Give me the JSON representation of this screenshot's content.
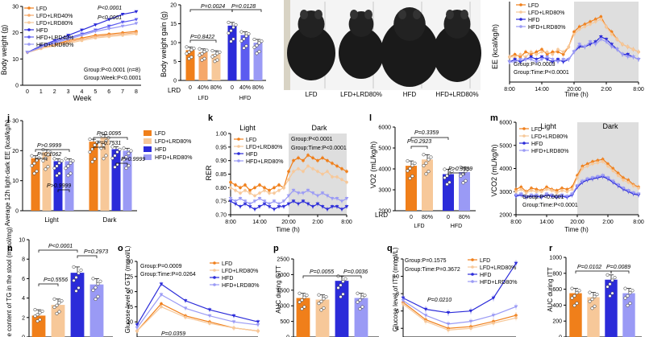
{
  "colors": {
    "LFD": "#f07f1a",
    "LFD+LRD40%": "#f5a86a",
    "LFD+LRD80%": "#f7c899",
    "HFD": "#2b2bd9",
    "HFD+LRD40%": "#5c5cf0",
    "HFD+LRD80%": "#9a9af5",
    "dark_band": "#dedede"
  },
  "photo": {
    "labels": [
      "LFD",
      "LFD+LRD80%",
      "HFD",
      "HFD+LRD80%"
    ]
  },
  "chart_data": [
    {
      "id": "body_weight",
      "type": "line",
      "ylabel": "Body weight (g)",
      "xlabel": "Week",
      "x": [
        0,
        1,
        2,
        3,
        4,
        5,
        6,
        7,
        8
      ],
      "ylim": [
        0,
        30
      ],
      "yticks": [
        0,
        10,
        20,
        30
      ],
      "series": [
        {
          "name": "LFD",
          "values": [
            12.5,
            14,
            15.5,
            17,
            18,
            19,
            19.5,
            20,
            20.5
          ]
        },
        {
          "name": "LFD+LRD40%",
          "values": [
            12.5,
            14,
            15.5,
            16.5,
            17.5,
            18.5,
            19,
            19.5,
            20
          ]
        },
        {
          "name": "LFD+LRD80%",
          "values": [
            12.5,
            14,
            15,
            16,
            17,
            18,
            18.5,
            19,
            19.5
          ]
        },
        {
          "name": "HFD",
          "values": [
            12.5,
            15,
            17,
            19,
            21,
            23,
            25,
            27,
            28
          ]
        },
        {
          "name": "HFD+LRD40%",
          "values": [
            12.5,
            14.5,
            16.5,
            18,
            19.5,
            21,
            22.5,
            24,
            25
          ]
        },
        {
          "name": "HFD+LRD80%",
          "values": [
            12.5,
            14.5,
            16,
            17.5,
            19,
            20.5,
            21.5,
            22.5,
            23.5
          ]
        }
      ],
      "annotations": [
        "P<0.0001",
        "P<0.0001",
        "Group:P<0.0001 (n=8)",
        "Group:Week:P<0.0001"
      ]
    },
    {
      "id": "bw_gain",
      "type": "bar",
      "ylabel": "Body weight gain (g)",
      "ylim": [
        0,
        20
      ],
      "yticks": [
        0,
        5,
        10,
        15,
        20
      ],
      "categories": [
        "0",
        "40%",
        "80%",
        "0",
        "40%",
        "80%"
      ],
      "group_labels": [
        "LFD",
        "HFD"
      ],
      "axis_title": "LRD",
      "values": [
        8,
        7.5,
        7,
        14.5,
        12,
        10
      ],
      "annotations": [
        "P=0.0024",
        "P=0.0128",
        "P=0.8422"
      ]
    },
    {
      "id": "ee_time",
      "type": "line",
      "panel_label": "",
      "ylabel": "EE (kcal/kg/h)",
      "xlabel": "Time (h)",
      "xticks": [
        "8:00",
        "14:00",
        "20:00",
        "2:00",
        "8:00"
      ],
      "series": [
        {
          "name": "LFD",
          "values": [
            17,
            17.5,
            17,
            18,
            17.5,
            18,
            18.5,
            17.5,
            18,
            18,
            17.5,
            19,
            22,
            23,
            23.5,
            24,
            24.5,
            25,
            23,
            22,
            20.5,
            19.5,
            19,
            18.5,
            18
          ]
        },
        {
          "name": "LFD+LRD80%",
          "values": [
            17,
            17,
            17.5,
            17,
            18,
            17.5,
            18,
            18,
            17.5,
            18.5,
            18,
            19,
            21.5,
            22.5,
            23,
            23.5,
            24,
            24.5,
            23,
            21.5,
            20.5,
            19.5,
            19,
            18.5,
            18
          ]
        },
        {
          "name": "HFD",
          "values": [
            16,
            16.5,
            16,
            16.5,
            17,
            16.5,
            17,
            16.5,
            16,
            16.5,
            16,
            16.5,
            18,
            19,
            19,
            19.5,
            20,
            21,
            20.5,
            19.5,
            18.5,
            17.5,
            17.5,
            17,
            16.5
          ]
        },
        {
          "name": "HFD+LRD80%",
          "values": [
            16,
            16,
            16.5,
            16.5,
            16.5,
            16,
            16.5,
            17,
            16.5,
            16,
            16.5,
            16.5,
            18,
            19.5,
            19,
            20,
            19.5,
            20.5,
            20,
            19,
            18.5,
            17.5,
            17,
            17,
            16.5
          ]
        }
      ],
      "annotations": [
        "Group:P=0.0003",
        "Group:Time:P<0.0001"
      ]
    },
    {
      "id": "ee_avg",
      "type": "bar",
      "panel_label": "j",
      "ylabel": "Average 12h light-dark EE (kcal/kg/h)",
      "ylim": [
        0,
        30
      ],
      "yticks": [
        0,
        10,
        20,
        30
      ],
      "categories": [
        "Light",
        "Dark"
      ],
      "series": [
        {
          "name": "LFD",
          "values": [
            17.5,
            23
          ]
        },
        {
          "name": "LFD+LRD80%",
          "values": [
            19.5,
            24.5
          ]
        },
        {
          "name": "HFD",
          "values": [
            16.5,
            20.5
          ]
        },
        {
          "name": "HFD+LRD80%",
          "values": [
            16.5,
            20
          ]
        }
      ],
      "annotations": [
        "P>0.9999",
        "P=0.1062",
        "P>0.9999",
        "P=0.0095",
        "P=0.7531",
        "P>0.9999"
      ]
    },
    {
      "id": "rer",
      "type": "line",
      "panel_label": "k",
      "ylabel": "RER",
      "xlabel": "Time (h)",
      "light_label": "Light",
      "dark_label": "Dark",
      "yticks": [
        "0.70",
        "0.75",
        "0.80",
        "0.85",
        "0.90",
        "0.95",
        "1.00"
      ],
      "xticks": [
        "8:00",
        "14:00",
        "20:00",
        "2:00",
        "8:00"
      ],
      "series": [
        {
          "name": "LFD",
          "values": [
            0.82,
            0.81,
            0.8,
            0.81,
            0.79,
            0.8,
            0.81,
            0.8,
            0.79,
            0.8,
            0.81,
            0.8,
            0.86,
            0.9,
            0.91,
            0.9,
            0.92,
            0.91,
            0.9,
            0.91,
            0.9,
            0.89,
            0.88,
            0.87,
            0.86
          ]
        },
        {
          "name": "LFD+LRD80%",
          "values": [
            0.8,
            0.79,
            0.78,
            0.79,
            0.78,
            0.77,
            0.78,
            0.79,
            0.78,
            0.78,
            0.79,
            0.8,
            0.83,
            0.86,
            0.87,
            0.86,
            0.88,
            0.87,
            0.86,
            0.85,
            0.86,
            0.84,
            0.84,
            0.83,
            0.82
          ]
        },
        {
          "name": "HFD",
          "values": [
            0.75,
            0.74,
            0.73,
            0.74,
            0.73,
            0.72,
            0.73,
            0.74,
            0.73,
            0.72,
            0.73,
            0.73,
            0.74,
            0.75,
            0.74,
            0.75,
            0.74,
            0.73,
            0.74,
            0.73,
            0.72,
            0.73,
            0.73,
            0.72,
            0.73
          ]
        },
        {
          "name": "HFD+LRD80%",
          "values": [
            0.76,
            0.75,
            0.76,
            0.75,
            0.74,
            0.75,
            0.76,
            0.75,
            0.74,
            0.75,
            0.74,
            0.75,
            0.77,
            0.79,
            0.78,
            0.78,
            0.79,
            0.78,
            0.77,
            0.78,
            0.77,
            0.76,
            0.76,
            0.75,
            0.76
          ]
        }
      ],
      "annotations": [
        "Group:P<0.0001",
        "Group:Time:P<0.0001"
      ]
    },
    {
      "id": "vo2",
      "type": "bar",
      "panel_label": "l",
      "ylabel": "VO2 (mL/kg/h)",
      "ylim": [
        2000,
        6000
      ],
      "yticks": [
        2000,
        3000,
        4000,
        5000,
        6000
      ],
      "categories": [
        "0",
        "80%",
        "0",
        "80%"
      ],
      "group_labels": [
        "LFD",
        "HFD"
      ],
      "axis_title": "LRD",
      "values": [
        4150,
        4450,
        3750,
        3850
      ],
      "annotations": [
        "P=0.3359",
        "P=0.2923",
        "P>0.9999"
      ]
    },
    {
      "id": "vco2",
      "type": "line",
      "panel_label": "m",
      "ylabel": "VCO2 (mL/kg/h)",
      "xlabel": "Time (h)",
      "light_label": "Light",
      "dark_label": "Dark",
      "yticks": [
        2000,
        3000,
        4000,
        5000,
        6000
      ],
      "xticks": [
        "8:00",
        "14:00",
        "20:00",
        "2:00",
        "8:00"
      ],
      "series": [
        {
          "name": "LFD",
          "values": [
            3100,
            3200,
            3000,
            3150,
            3100,
            3050,
            3200,
            3100,
            3050,
            3150,
            3100,
            3200,
            3700,
            4100,
            4200,
            4300,
            4350,
            4400,
            4200,
            4000,
            3800,
            3600,
            3500,
            3300,
            3200
          ]
        },
        {
          "name": "LFD+LRD80%",
          "values": [
            3000,
            3100,
            2950,
            3050,
            3000,
            3000,
            3100,
            3050,
            2950,
            3050,
            3000,
            3100,
            3600,
            4000,
            4100,
            4200,
            4250,
            4300,
            4100,
            3900,
            3700,
            3500,
            3400,
            3250,
            3150
          ]
        },
        {
          "name": "HFD",
          "values": [
            2800,
            2850,
            2750,
            2800,
            2800,
            2750,
            2850,
            2800,
            2750,
            2800,
            2750,
            2850,
            3200,
            3400,
            3500,
            3550,
            3600,
            3650,
            3550,
            3400,
            3250,
            3100,
            3000,
            2900,
            2850
          ]
        },
        {
          "name": "HFD+LRD80%",
          "values": [
            2850,
            2900,
            2800,
            2850,
            2850,
            2800,
            2900,
            2850,
            2800,
            2850,
            2800,
            2900,
            3250,
            3450,
            3550,
            3600,
            3650,
            3700,
            3600,
            3450,
            3300,
            3150,
            3050,
            2950,
            2900
          ]
        }
      ],
      "annotations": [
        "Group:P<0.0001",
        "Group:Time:P<0.0001"
      ]
    },
    {
      "id": "tg_stool",
      "type": "bar",
      "panel_label": "n",
      "ylabel": "The content of TG in the stool (mmol/mg)",
      "ylim": [
        0,
        10
      ],
      "yticks": [
        0,
        2,
        4,
        6,
        8,
        10
      ],
      "categories": [
        "LFD",
        "LFD+LRD80%",
        "HFD",
        "HFD+LRD80%"
      ],
      "values": [
        2.2,
        3.3,
        6.6,
        5.4
      ],
      "annotations": [
        "P<0.0001",
        "P=0.2973",
        "P=0.5556"
      ]
    },
    {
      "id": "gtt",
      "type": "line",
      "panel_label": "o",
      "ylabel": "Glucose level of GTT (mmol/L)",
      "xlabel": "Time (min)",
      "ylim": [
        5,
        30
      ],
      "yticks": [
        10,
        15,
        20,
        25,
        30
      ],
      "x": [
        0,
        15,
        30,
        60,
        90,
        120
      ],
      "series": [
        {
          "name": "LFD",
          "values": [
            7,
            16,
            12,
            10,
            8,
            7
          ]
        },
        {
          "name": "LFD+LRD80%",
          "values": [
            7,
            15,
            11.5,
            9.5,
            8,
            7
          ]
        },
        {
          "name": "HFD",
          "values": [
            9,
            22.5,
            17,
            14,
            12,
            10
          ]
        },
        {
          "name": "HFD+LRD80%",
          "values": [
            8,
            19,
            14.5,
            12,
            10,
            9
          ]
        }
      ],
      "annotations": [
        "Group:P=0.0009",
        "Group:Time:P=0.0264",
        "P=0.0359"
      ]
    },
    {
      "id": "auc_gtt",
      "type": "bar",
      "panel_label": "p",
      "ylabel": "AUC during GTT",
      "ylim": [
        0,
        2500
      ],
      "yticks": [
        0,
        500,
        1000,
        1500,
        2000,
        2500
      ],
      "categories": [
        "LFD",
        "LFD+LRD80%",
        "HFD",
        "HFD+LRD80%"
      ],
      "values": [
        1250,
        1200,
        1800,
        1250
      ],
      "annotations": [
        "P=0.0055",
        "P=0.0036"
      ]
    },
    {
      "id": "itt",
      "type": "line",
      "panel_label": "q",
      "ylabel": "Glucose level of ITT (mmol/L)",
      "xlabel": "Time (min)",
      "ylim": [
        3,
        12
      ],
      "yticks": [
        4,
        6,
        8,
        10,
        12
      ],
      "x": [
        0,
        15,
        30,
        60,
        90,
        120
      ],
      "series": [
        {
          "name": "LFD",
          "values": [
            7,
            5,
            4,
            4.2,
            4.8,
            5.5
          ]
        },
        {
          "name": "LFD+LRD80%",
          "values": [
            6.8,
            4.8,
            3.8,
            4,
            4.6,
            5.2
          ]
        },
        {
          "name": "HFD",
          "values": [
            7.5,
            6.2,
            5.8,
            6,
            7.5,
            11.5
          ]
        },
        {
          "name": "HFD+LRD80%",
          "values": [
            7.2,
            5.5,
            4.5,
            4.8,
            5.5,
            6.5
          ]
        }
      ],
      "annotations": [
        "Group:P=0.1575",
        "Group:Time:P=0.3672",
        "P=0.0210"
      ]
    },
    {
      "id": "auc_itt",
      "type": "bar",
      "panel_label": "r",
      "ylabel": "AUC during ITT",
      "ylim": [
        0,
        1000
      ],
      "yticks": [
        0,
        200,
        400,
        600,
        800,
        1000
      ],
      "categories": [
        "LFD",
        "LFD+LRD80%",
        "HFD",
        "HFD+LRD80%"
      ],
      "values": [
        550,
        500,
        720,
        550
      ],
      "annotations": [
        "P=0.0102",
        "P=0.0089"
      ]
    }
  ]
}
